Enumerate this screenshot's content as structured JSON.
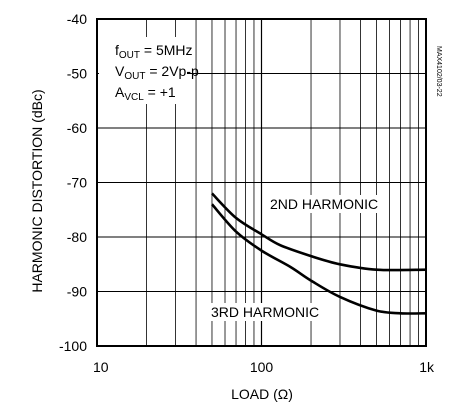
{
  "chart_data": {
    "type": "line",
    "ylabel": "HARMONIC DISTORTION (dBc)",
    "xlabel": "LOAD (Ω)",
    "x_scale": "log",
    "xlim": [
      10,
      1000
    ],
    "ylim": [
      -100,
      -40
    ],
    "grid": true,
    "x_ticks": [
      {
        "value": 10,
        "label": "10"
      },
      {
        "value": 100,
        "label": "100"
      },
      {
        "value": 1000,
        "label": "1k"
      }
    ],
    "y_ticks": [
      {
        "value": -40,
        "label": "-40"
      },
      {
        "value": -50,
        "label": "-50"
      },
      {
        "value": -60,
        "label": "-60"
      },
      {
        "value": -70,
        "label": "-70"
      },
      {
        "value": -80,
        "label": "-80"
      },
      {
        "value": -90,
        "label": "-90"
      },
      {
        "value": -100,
        "label": "-100"
      }
    ],
    "conditions": {
      "fout": {
        "main": "f",
        "sub": "OUT",
        "rest": " = 5MHz"
      },
      "vout": {
        "main": "V",
        "sub": "OUT",
        "rest": " = 2Vp-p"
      },
      "avcl": {
        "main": "A",
        "sub": "VCL",
        "rest": " = +1"
      }
    },
    "code": "MAX4102/03-22",
    "series": [
      {
        "name": "2ND HARMONIC",
        "x": [
          50,
          70,
          100,
          130,
          200,
          300,
          500,
          1000
        ],
        "y": [
          -72,
          -76.5,
          -79.5,
          -81.5,
          -83.5,
          -85,
          -86,
          -86
        ]
      },
      {
        "name": "3RD HARMONIC",
        "x": [
          50,
          70,
          100,
          150,
          200,
          300,
          500,
          700,
          1000
        ],
        "y": [
          -74,
          -79,
          -82.5,
          -85.5,
          -88,
          -91,
          -93.5,
          -94,
          -94
        ]
      }
    ]
  }
}
